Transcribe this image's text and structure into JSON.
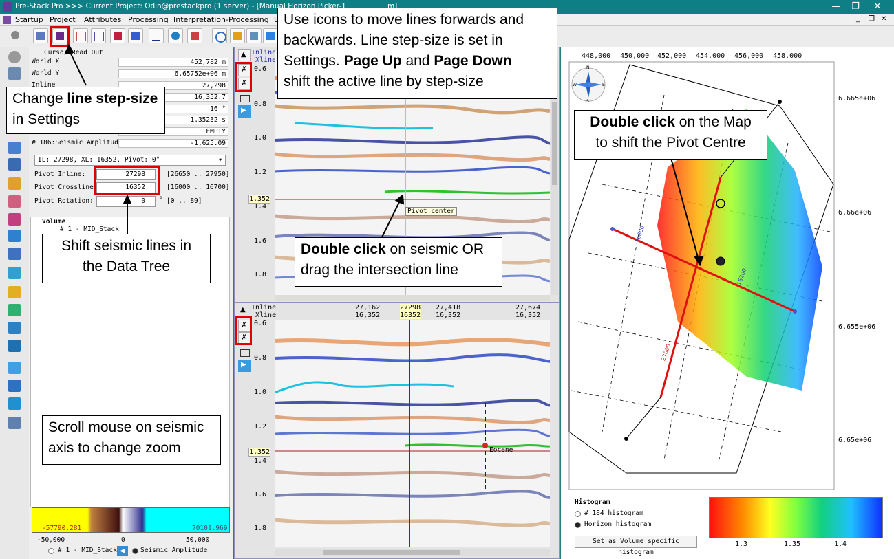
{
  "window": {
    "title": "Pre-Stack Pro   >>>   Current Project: Odin@prestackpro (1 server) - [Manual Horizon Picker-1 ",
    "title_suffix": "m]"
  },
  "menu": [
    "Startup",
    "Project",
    "Attributes",
    "Processing",
    "Interpretation-Processing",
    "U"
  ],
  "readout": {
    "header": "Cursor Read Out",
    "rows": [
      {
        "label": "World X",
        "value": "452,782 m"
      },
      {
        "label": "World Y",
        "value": "6.65752e+06 m"
      },
      {
        "label": "Inline",
        "value": "27,298"
      },
      {
        "label": "",
        "value": "16,352.7"
      },
      {
        "label": "",
        "value": "16 °"
      },
      {
        "label": "",
        "value": "1.35232 s"
      },
      {
        "label": "",
        "value": "EMPTY"
      }
    ],
    "amplitude_label": "# 186:Seismic Amplitude",
    "amplitude_value": "-1,625.09"
  },
  "pivot": {
    "select": "IL: 27298, XL: 16352, Pivot: 0°",
    "inline_label": "Pivot Inline:",
    "inline_value": "27298",
    "inline_range": "[26650 .. 27950]",
    "crossline_label": "Pivot Crossline:",
    "crossline_value": "16352",
    "crossline_range": "[16000 .. 16700]",
    "rotation_label": "Pivot Rotation:",
    "rotation_value": "0",
    "rotation_unit": "°",
    "rotation_range": "[0 .. 89]"
  },
  "tree": {
    "root": "Volume",
    "item": "# 1 - MID_Stack"
  },
  "colorbar": {
    "min": "-57790.281",
    "max": "70101.969",
    "ticks": [
      "-50,000",
      "0",
      "50,000"
    ]
  },
  "bottom_bar": {
    "dataset": "# 1 - MID_Stack",
    "attribute": "Seismic Amplitude"
  },
  "seismic_top": {
    "header1": "Inline",
    "header2": "Xline",
    "y_ticks": [
      "0.8",
      "1.0",
      "1.2",
      "1.4",
      "1.6",
      "1.8"
    ],
    "first_tick": "0.6",
    "cursor_time": "1.352",
    "pivot_tooltip": "Pivot center"
  },
  "seismic_bottom": {
    "header1": "Inline",
    "header2": "Xline",
    "x_ticks": [
      {
        "inline": "27,162",
        "xline": "16,352"
      },
      {
        "inline": "27,418",
        "xline": "16,352"
      },
      {
        "inline": "27,674",
        "xline": "16,352"
      }
    ],
    "active": {
      "inline": "27298",
      "xline": "16352"
    },
    "y_ticks": [
      "0.6",
      "0.8",
      "1.0",
      "1.2",
      "1.4",
      "1.6",
      "1.8"
    ],
    "cursor_time": "1.352",
    "horizon_label": "Eocene"
  },
  "map": {
    "x_ticks": [
      "448,000",
      "450,000",
      "452,000",
      "454,000",
      "456,000",
      "458,000"
    ],
    "y_ticks": [
      "6.665e+06",
      "6.66e+06",
      "6.655e+06",
      "6.65e+06"
    ],
    "line_labels": [
      "16600",
      "16200",
      "27000"
    ],
    "compass": [
      "N",
      "S",
      "W",
      "E"
    ]
  },
  "histogram": {
    "title": "Histogram",
    "opt1": "# 184 histogram",
    "opt2": "Horizon histogram",
    "button": "Set as Volume specific histogram",
    "ticks": [
      "1.3",
      "1.35",
      "1.4"
    ]
  },
  "callouts": {
    "icons_line1": "Use icons to move lines forwards and",
    "icons_line2": "backwards. Line step-size is set in",
    "icons_line3": "Settings.",
    "icons_pageup": "Page Up",
    "icons_and": "and",
    "icons_pagedown": "Page Down",
    "icons_line4": "shift the active line by step-size",
    "step_pre": "Change",
    "step_bold": "line step-size",
    "step_post": "in Settings",
    "tree_line1": "Shift seismic lines in",
    "tree_line2": "the Data Tree",
    "scroll_line1": "Scroll mouse on seismic",
    "scroll_line2": "axis to change zoom",
    "dbl_bold": "Double click",
    "dbl_rest1": "on seismic OR",
    "dbl_line2": "drag the intersection line",
    "map_bold": "Double click",
    "map_rest1": "on the Map",
    "map_line2": "to shift the Pivot Centre"
  }
}
